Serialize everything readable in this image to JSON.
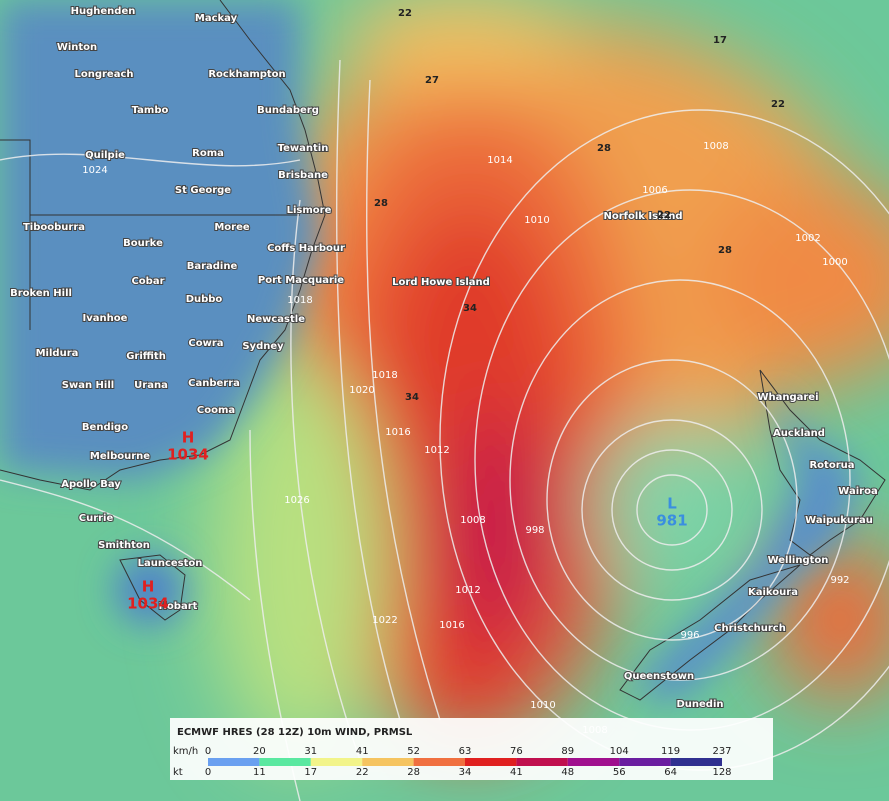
{
  "places": [
    "Hughenden",
    "Mackay",
    "Winton",
    "Longreach",
    "Rockhampton",
    "Tambo",
    "Bundaberg",
    "Quilpie",
    "Roma",
    "Tewantin",
    "Brisbane",
    "St George",
    "Lismore",
    "Tibooburra",
    "Moree",
    "Coffs Harbour",
    "Bourke",
    "Baradine",
    "Cobar",
    "Port Macquarie",
    "Broken Hill",
    "Dubbo",
    "Newcastle",
    "Ivanhoe",
    "Cowra",
    "Sydney",
    "Mildura",
    "Griffith",
    "Swan Hill",
    "Urana",
    "Canberra",
    "Cooma",
    "Bendigo",
    "Melbourne",
    "Apollo Bay",
    "Currie",
    "Smithton",
    "Launceston",
    "Hobart",
    "Lord Howe Island",
    "Norfolk Island",
    "Whangarei",
    "Auckland",
    "Rotorua",
    "Wairoa",
    "Waipukurau",
    "Wellington",
    "Kaikoura",
    "Christchurch",
    "Queenstown",
    "Dunedin"
  ],
  "pressure_systems": [
    {
      "letter": "H",
      "value": "1034"
    },
    {
      "letter": "H",
      "value": "1034"
    },
    {
      "letter": "L",
      "value": "981"
    }
  ],
  "isobar_labels": [
    "1024",
    "1020",
    "1018",
    "1016",
    "1012",
    "1008",
    "998",
    "1014",
    "1010",
    "1006",
    "1008",
    "1002",
    "1000",
    "1026",
    "1022",
    "1016",
    "1012",
    "1010",
    "1008",
    "992",
    "996",
    "1018"
  ],
  "wind_labels": [
    "22",
    "27",
    "28",
    "28",
    "34",
    "34",
    "28",
    "22",
    "17",
    "22"
  ],
  "legend": {
    "title": "ECMWF HRES (28 12Z) 10m WIND, PRMSL",
    "kmh_unit": "km/h",
    "kt_unit": "kt",
    "kmh": [
      "0",
      "20",
      "31",
      "41",
      "52",
      "63",
      "76",
      "89",
      "104",
      "119",
      "237"
    ],
    "kt": [
      "0",
      "11",
      "17",
      "22",
      "28",
      "34",
      "41",
      "48",
      "56",
      "64",
      "128"
    ],
    "colors": [
      "#6aa0f0",
      "#5ae8a0",
      "#f2f48a",
      "#f5c460",
      "#f07040",
      "#e02020",
      "#c0104e",
      "#a0108e",
      "#6a1ea0",
      "#303090"
    ]
  }
}
